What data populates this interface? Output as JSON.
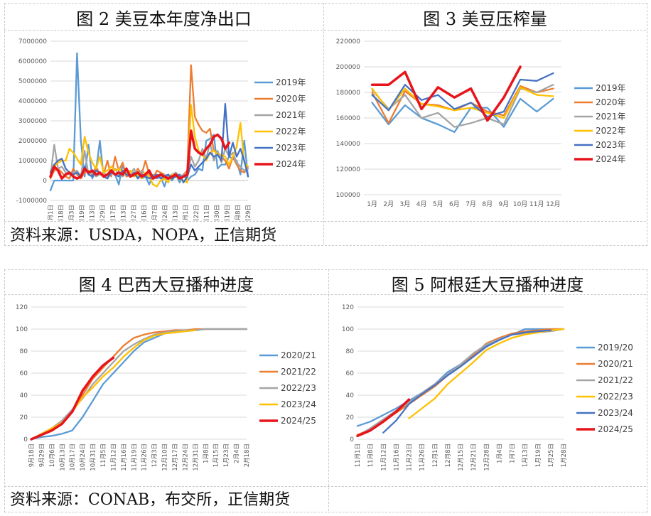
{
  "colors": {
    "blue": "#5b9bd5",
    "orange": "#ed7d31",
    "gray": "#a5a5a5",
    "yellow": "#ffc000",
    "darkblue": "#4472c4",
    "red": "#e8141b"
  },
  "sources": {
    "top": "资料来源：USDA，NOPA，正信期货",
    "bottom": "资料来源：CONAB，布交所，正信期货"
  },
  "chart_data": [
    {
      "id": "fig2",
      "title": "图 2  美豆本年度净出口",
      "type": "line",
      "ylim": [
        -1000000,
        7000000
      ],
      "yticks": [
        -1000000,
        0,
        1000000,
        2000000,
        3000000,
        4000000,
        5000000,
        6000000,
        7000000
      ],
      "ytick_labels": [
        "-1000000",
        "0",
        "1000000",
        "2000000",
        "3000000",
        "4000000",
        "5000000",
        "6000000",
        "7000000"
      ],
      "x_labels": [
        "1月1日",
        "1月18日",
        "2月3日",
        "2月19日",
        "3月13日",
        "3月29日",
        "4月17日",
        "5月13日",
        "5月27日",
        "6月16日",
        "7月7日",
        "7月24日",
        "8月13日",
        "9月1日",
        "9月22日",
        "10月11日",
        "10月30日",
        "11月19日",
        "12月8日",
        "12月29日"
      ],
      "n_points": 53,
      "series": [
        {
          "name": "2019年",
          "color": "blue",
          "values": [
            -500000,
            0,
            0,
            0,
            0,
            0,
            0,
            6400000,
            2000000,
            200000,
            1800000,
            100000,
            500000,
            2000000,
            200000,
            100000,
            500000,
            300000,
            -200000,
            800000,
            200000,
            300000,
            400000,
            300000,
            100000,
            200000,
            -200000,
            300000,
            100000,
            200000,
            -300000,
            300000,
            0,
            300000,
            -100000,
            300000,
            0,
            200000,
            300000,
            600000,
            500000,
            2000000,
            2100000,
            2300000,
            600000,
            800000,
            800000,
            1200000,
            1100000,
            1000000,
            300000,
            2000000,
            200000
          ]
        },
        {
          "name": "2020年",
          "color": "orange",
          "values": [
            100000,
            500000,
            600000,
            400000,
            200000,
            100000,
            600000,
            300000,
            100000,
            400000,
            500000,
            300000,
            700000,
            300000,
            300000,
            1000000,
            200000,
            1200000,
            500000,
            900000,
            200000,
            300000,
            200000,
            600000,
            300000,
            1000000,
            300000,
            100000,
            500000,
            400000,
            300000,
            200000,
            300000,
            200000,
            100000,
            300000,
            500000,
            5800000,
            3200000,
            2800000,
            2500000,
            2400000,
            2600000,
            1500000,
            1400000,
            1200000,
            1000000,
            600000,
            1200000,
            800000,
            500000,
            400000,
            700000
          ]
        },
        {
          "name": "2021年",
          "color": "gray",
          "values": [
            200000,
            1800000,
            600000,
            700000,
            400000,
            300000,
            400000,
            500000,
            200000,
            1500000,
            300000,
            400000,
            200000,
            300000,
            400000,
            200000,
            300000,
            600000,
            300000,
            200000,
            400000,
            300000,
            600000,
            200000,
            500000,
            300000,
            200000,
            300000,
            200000,
            200000,
            300000,
            200000,
            300000,
            400000,
            200000,
            300000,
            200000,
            1200000,
            700000,
            1000000,
            1600000,
            1100000,
            1900000,
            1000000,
            1500000,
            900000,
            1600000,
            1200000,
            1400000,
            900000,
            700000,
            500000,
            600000
          ]
        },
        {
          "name": "2022年",
          "color": "yellow",
          "values": [
            500000,
            700000,
            900000,
            1000000,
            1000000,
            1600000,
            1400000,
            1100000,
            800000,
            2200000,
            1400000,
            900000,
            600000,
            1200000,
            400000,
            500000,
            700000,
            500000,
            600000,
            400000,
            300000,
            500000,
            200000,
            300000,
            100000,
            400000,
            200000,
            -200000,
            -300000,
            0,
            100000,
            -100000,
            300000,
            200000,
            100000,
            0,
            -100000,
            3800000,
            2200000,
            1500000,
            1300000,
            1000000,
            1400000,
            1500000,
            1300000,
            1300000,
            1200000,
            800000,
            1200000,
            1700000,
            2900000,
            900000,
            700000
          ]
        },
        {
          "name": "2023年",
          "color": "darkblue",
          "values": [
            400000,
            800000,
            1000000,
            1100000,
            600000,
            400000,
            300000,
            400000,
            200000,
            700000,
            300000,
            200000,
            500000,
            400000,
            200000,
            100000,
            400000,
            300000,
            200000,
            500000,
            300000,
            200000,
            400000,
            100000,
            300000,
            200000,
            100000,
            200000,
            300000,
            100000,
            200000,
            300000,
            100000,
            200000,
            300000,
            -100000,
            200000,
            800000,
            500000,
            700000,
            900000,
            1100000,
            1400000,
            1200000,
            1300000,
            1000000,
            3850000,
            1200000,
            1900000,
            1200000,
            1600000,
            1000000,
            200000
          ]
        },
        {
          "name": "2024年",
          "color": "red",
          "values": [
            200000,
            700000,
            500000,
            100000,
            300000,
            400000,
            200000,
            100000,
            200000,
            600000,
            400000,
            500000,
            300000,
            400000,
            200000,
            300000,
            500000,
            300000,
            400000,
            300000,
            600000,
            200000,
            300000,
            400000,
            200000,
            300000,
            500000,
            100000,
            200000,
            300000,
            200000,
            100000,
            200000,
            300000,
            100000,
            200000,
            300000,
            2500000,
            1600000,
            1400000,
            1300000,
            1600000,
            1800000,
            2200000,
            2300000,
            2100000,
            1600000,
            1900000
          ]
        }
      ]
    },
    {
      "id": "fig3",
      "title": "图 3  美豆压榨量",
      "type": "line",
      "ylim": [
        100000,
        220000
      ],
      "yticks": [
        100000,
        120000,
        140000,
        160000,
        180000,
        200000,
        220000
      ],
      "ytick_labels": [
        "100000",
        "120000",
        "140000",
        "160000",
        "180000",
        "200000",
        "220000"
      ],
      "x_labels": [
        "1月",
        "2月",
        "3月",
        "4月",
        "5月",
        "6月",
        "7月",
        "8月",
        "9月",
        "10月",
        "11月",
        "12月"
      ],
      "series": [
        {
          "name": "2019年",
          "color": "blue",
          "values": [
            172000,
            155000,
            170000,
            160000,
            155000,
            149000,
            168000,
            168000,
            153000,
            175000,
            165000,
            175000
          ]
        },
        {
          "name": "2020年",
          "color": "orange",
          "values": [
            180000,
            156000,
            181000,
            171000,
            170000,
            166000,
            172000,
            165000,
            162000,
            185000,
            180000,
            183000
          ]
        },
        {
          "name": "2021年",
          "color": "gray",
          "values": [
            182000,
            167000,
            178000,
            160000,
            164000,
            153000,
            156000,
            160000,
            155000,
            183000,
            180000,
            186000
          ]
        },
        {
          "name": "2022年",
          "color": "yellow",
          "values": [
            183000,
            166000,
            183000,
            171000,
            169000,
            166000,
            168000,
            164000,
            160000,
            184000,
            178000,
            177000
          ]
        },
        {
          "name": "2023年",
          "color": "darkblue",
          "values": [
            178000,
            166000,
            186000,
            174000,
            178000,
            167000,
            172000,
            161000,
            165000,
            190000,
            189000,
            195000
          ]
        },
        {
          "name": "2024年",
          "color": "red",
          "values": [
            186000,
            186000,
            196000,
            167000,
            184000,
            176000,
            183000,
            158000,
            176000,
            200000
          ]
        }
      ]
    },
    {
      "id": "fig4",
      "title": "图 4  巴西大豆播种进度",
      "type": "line",
      "ylim": [
        0,
        120
      ],
      "yticks": [
        0,
        20,
        40,
        60,
        80,
        100,
        120
      ],
      "ytick_labels": [
        "0",
        "20",
        "40",
        "60",
        "80",
        "100",
        "120"
      ],
      "x_labels": [
        "9月18日",
        "9月29日",
        "10月6日",
        "10月13日",
        "10月17日",
        "10月24日",
        "10月31日",
        "11月5日",
        "11月12日",
        "11月16日",
        "11月19日",
        "11月26日",
        "12月3日",
        "12月10日",
        "12月17日",
        "12月24日",
        "12月31日",
        "1月8日",
        "1月15日",
        "1月23日",
        "2月4日",
        "2月18日"
      ],
      "series": [
        {
          "name": "2020/21",
          "color": "blue",
          "values": [
            0,
            2,
            3,
            5,
            8,
            20,
            35,
            50,
            60,
            70,
            80,
            88,
            92,
            96,
            97,
            98,
            99,
            100,
            100,
            100,
            100,
            100
          ]
        },
        {
          "name": "2021/22",
          "color": "orange",
          "values": [
            0,
            4,
            8,
            14,
            25,
            40,
            55,
            65,
            75,
            85,
            92,
            95,
            97,
            98,
            99,
            99,
            100,
            100,
            100,
            100,
            100,
            100
          ]
        },
        {
          "name": "2022/23",
          "color": "gray",
          "values": [
            0,
            5,
            10,
            17,
            27,
            37,
            50,
            60,
            70,
            80,
            86,
            91,
            95,
            97,
            98,
            99,
            99,
            100,
            100,
            100,
            100,
            100
          ]
        },
        {
          "name": "2023/24",
          "color": "yellow",
          "values": [
            0,
            5,
            10,
            15,
            25,
            38,
            47,
            57,
            65,
            75,
            83,
            90,
            94,
            96,
            97,
            98,
            99
          ]
        },
        {
          "name": "2024/25",
          "color": "red",
          "values": [
            0,
            4,
            8,
            14,
            25,
            44,
            57,
            67,
            74
          ]
        }
      ]
    },
    {
      "id": "fig5",
      "title": "图 5  阿根廷大豆播种进度",
      "type": "line",
      "ylim": [
        0,
        120
      ],
      "yticks": [
        0,
        20,
        40,
        60,
        80,
        100,
        120
      ],
      "ytick_labels": [
        "0",
        "20",
        "40",
        "60",
        "80",
        "100",
        "120"
      ],
      "x_labels": [
        "11月1日",
        "11月8日",
        "11月12日",
        "11月16日",
        "11月23日",
        "11月26日",
        "12月1日",
        "12月8日",
        "12月15日",
        "12月21日",
        "12月28日",
        "1月4日",
        "1月7日",
        "1月13日",
        "1月19日",
        "1月25日",
        "1月28日"
      ],
      "series": [
        {
          "name": "2019/20",
          "color": "blue",
          "values": [
            12,
            16,
            22,
            28,
            35,
            42,
            50,
            61,
            68,
            77,
            85,
            92,
            95,
            100,
            100,
            100,
            100
          ]
        },
        {
          "name": "2020/21",
          "color": "orange",
          "values": [
            4,
            9,
            17,
            24,
            32,
            40,
            48,
            58,
            66,
            76,
            87,
            92,
            96,
            98,
            99,
            100,
            100
          ]
        },
        {
          "name": "2021/22",
          "color": "gray",
          "values": [
            3,
            10,
            18,
            26,
            33,
            42,
            50,
            59,
            68,
            78,
            86,
            91,
            95,
            96,
            97,
            98,
            100
          ]
        },
        {
          "name": "2022/23",
          "color": "yellow",
          "values": [
            null,
            null,
            null,
            null,
            19,
            28,
            37,
            50,
            60,
            70,
            81,
            87,
            92,
            95,
            97,
            99,
            100
          ]
        },
        {
          "name": "2023/24",
          "color": "darkblue",
          "values": [
            null,
            null,
            6,
            17,
            32,
            41,
            49,
            58,
            66,
            75,
            84,
            90,
            95,
            97,
            98,
            99
          ]
        },
        {
          "name": "2024/25",
          "color": "red",
          "values": [
            3,
            8,
            16,
            25,
            36
          ]
        }
      ]
    }
  ]
}
